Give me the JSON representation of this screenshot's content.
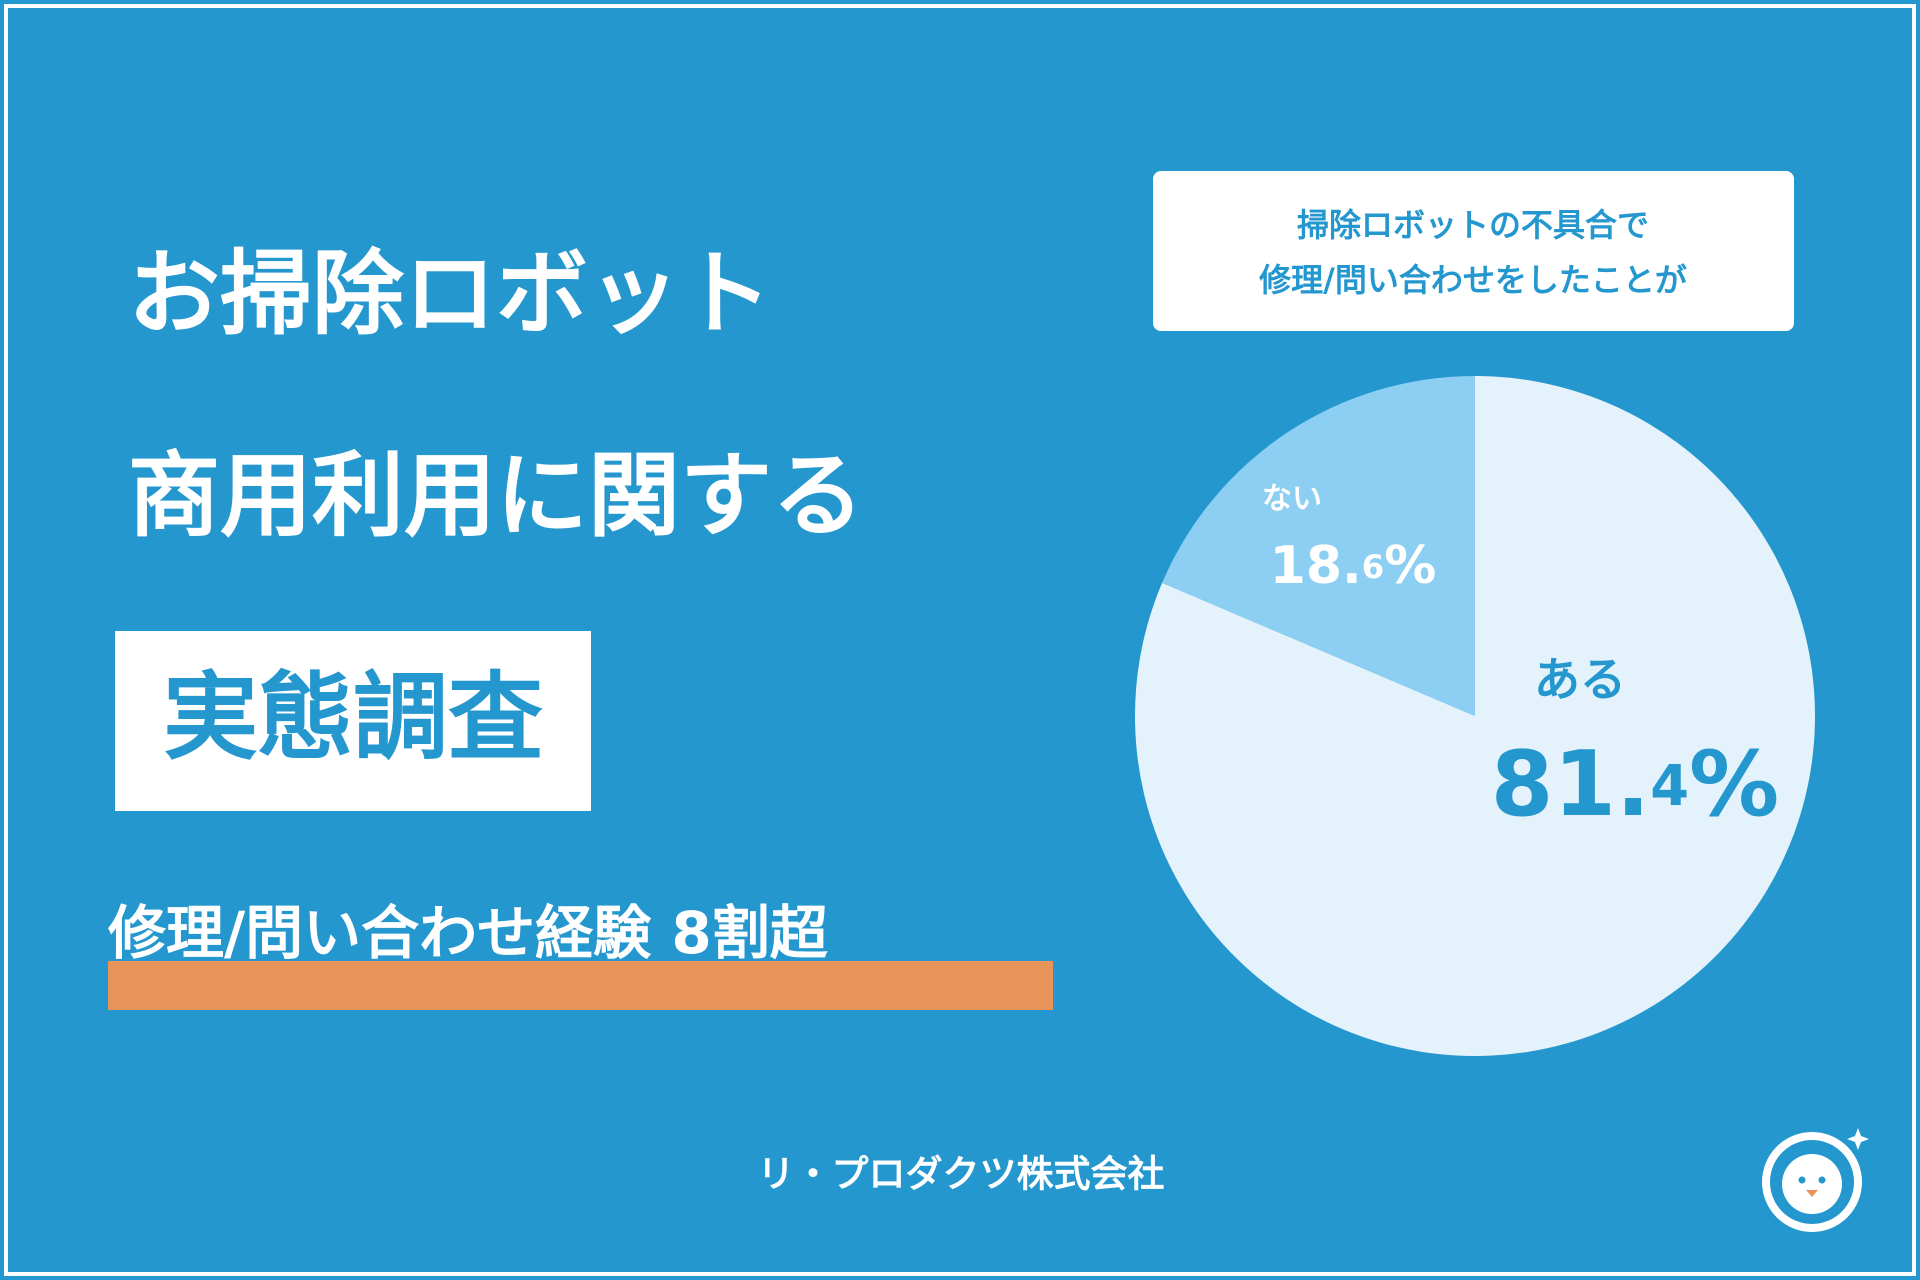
{
  "headline": {
    "lines": [
      "お掃除ロボット",
      "商用利用に関する"
    ],
    "badge": "実態調査",
    "subtitle": "修理/問い合わせ経験 8割超"
  },
  "footer": "リ・プロダクツ株式会社",
  "chart_data": {
    "type": "pie",
    "title_lines": [
      "掃除ロボットの不具合で",
      "修理/問い合わせをしたことが"
    ],
    "categories": [
      "ある",
      "ない"
    ],
    "values": [
      81.4,
      18.6
    ],
    "value_labels": [
      "81.4%",
      "18.6%"
    ],
    "colors": [
      "#e4f3fb",
      "#8dcff3"
    ]
  }
}
